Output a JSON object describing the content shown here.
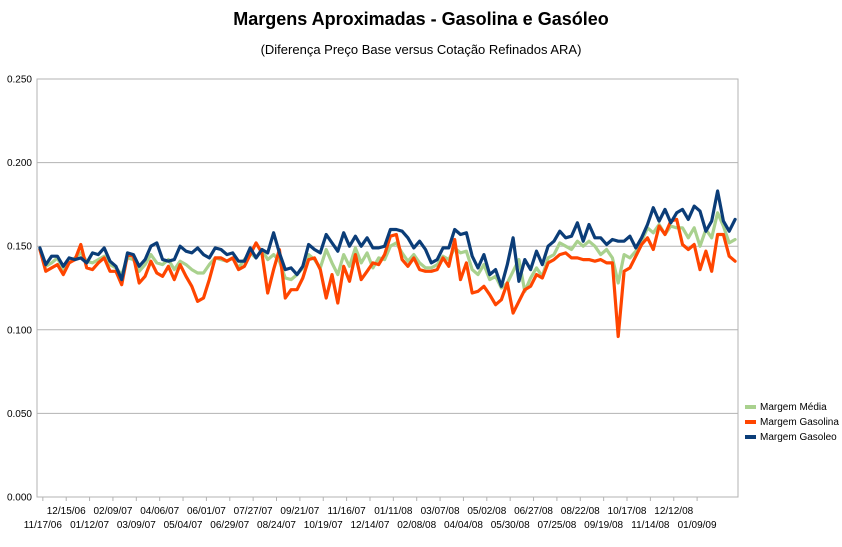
{
  "chart_data": {
    "type": "line",
    "title": "Margens Aproximadas - Gasolina e Gasóleo",
    "subtitle": "(Diferença Preço Base versus Cotação Refinados ARA)",
    "ylim": [
      0.0,
      0.25
    ],
    "yticks": [
      "0.000",
      "0.050",
      "0.100",
      "0.150",
      "0.200",
      "0.250"
    ],
    "grid": "horizontal",
    "legend_position": "right",
    "xtick_labels_upper": [
      "12/15/06",
      "02/09/07",
      "04/06/07",
      "06/01/07",
      "07/27/07",
      "09/21/07",
      "11/16/07",
      "01/11/08",
      "03/07/08",
      "05/02/08",
      "06/27/08",
      "08/22/08",
      "10/17/08",
      "12/12/08"
    ],
    "xtick_labels_lower": [
      "11/17/06",
      "01/12/07",
      "03/09/07",
      "05/04/07",
      "06/29/07",
      "08/24/07",
      "10/19/07",
      "12/14/07",
      "02/08/08",
      "04/04/08",
      "05/30/08",
      "07/25/08",
      "09/19/08",
      "11/14/08",
      "01/09/09"
    ],
    "series": [
      {
        "name": "Margem Média",
        "color": "#a9d18e",
        "values": [
          0.148,
          0.138,
          0.14,
          0.143,
          0.136,
          0.14,
          0.143,
          0.146,
          0.141,
          0.14,
          0.142,
          0.144,
          0.139,
          0.137,
          0.133,
          0.143,
          0.142,
          0.135,
          0.139,
          0.145,
          0.14,
          0.139,
          0.142,
          0.136,
          0.141,
          0.139,
          0.136,
          0.134,
          0.134,
          0.139,
          0.143,
          0.142,
          0.141,
          0.143,
          0.137,
          0.142,
          0.146,
          0.143,
          0.148,
          0.142,
          0.145,
          0.141,
          0.131,
          0.13,
          0.133,
          0.137,
          0.145,
          0.142,
          0.137,
          0.148,
          0.14,
          0.133,
          0.145,
          0.138,
          0.149,
          0.14,
          0.146,
          0.137,
          0.143,
          0.142,
          0.15,
          0.152,
          0.146,
          0.141,
          0.145,
          0.14,
          0.137,
          0.137,
          0.139,
          0.144,
          0.142,
          0.149,
          0.146,
          0.147,
          0.136,
          0.133,
          0.139,
          0.13,
          0.132,
          0.125,
          0.128,
          0.135,
          0.142,
          0.123,
          0.131,
          0.137,
          0.132,
          0.143,
          0.145,
          0.152,
          0.15,
          0.148,
          0.153,
          0.15,
          0.153,
          0.15,
          0.145,
          0.148,
          0.143,
          0.128,
          0.145,
          0.143,
          0.147,
          0.153,
          0.161,
          0.158,
          0.163,
          0.157,
          0.162,
          0.161,
          0.161,
          0.155,
          0.161,
          0.15,
          0.16,
          0.155,
          0.17,
          0.162,
          0.152,
          0.154
        ]
      },
      {
        "name": "Margem Gasolina",
        "color": "#ff4500",
        "values": [
          0.148,
          0.135,
          0.137,
          0.139,
          0.133,
          0.14,
          0.142,
          0.151,
          0.137,
          0.136,
          0.14,
          0.143,
          0.135,
          0.135,
          0.127,
          0.145,
          0.144,
          0.128,
          0.132,
          0.141,
          0.134,
          0.132,
          0.138,
          0.13,
          0.139,
          0.132,
          0.126,
          0.117,
          0.119,
          0.13,
          0.143,
          0.143,
          0.141,
          0.143,
          0.136,
          0.138,
          0.145,
          0.152,
          0.146,
          0.122,
          0.136,
          0.148,
          0.119,
          0.124,
          0.124,
          0.131,
          0.142,
          0.143,
          0.136,
          0.119,
          0.133,
          0.116,
          0.138,
          0.129,
          0.145,
          0.13,
          0.135,
          0.14,
          0.139,
          0.145,
          0.156,
          0.157,
          0.142,
          0.138,
          0.143,
          0.136,
          0.135,
          0.135,
          0.136,
          0.143,
          0.138,
          0.154,
          0.13,
          0.14,
          0.122,
          0.123,
          0.126,
          0.121,
          0.115,
          0.118,
          0.128,
          0.11,
          0.117,
          0.124,
          0.126,
          0.133,
          0.131,
          0.14,
          0.142,
          0.145,
          0.146,
          0.143,
          0.143,
          0.142,
          0.142,
          0.141,
          0.142,
          0.14,
          0.14,
          0.096,
          0.135,
          0.137,
          0.144,
          0.151,
          0.155,
          0.148,
          0.162,
          0.157,
          0.165,
          0.166,
          0.151,
          0.148,
          0.151,
          0.136,
          0.147,
          0.135,
          0.157,
          0.157,
          0.144,
          0.141
        ]
      },
      {
        "name": "Margem Gasoleo",
        "color": "#0b3d78",
        "values": [
          0.149,
          0.139,
          0.144,
          0.144,
          0.138,
          0.143,
          0.142,
          0.143,
          0.14,
          0.146,
          0.145,
          0.149,
          0.141,
          0.138,
          0.13,
          0.146,
          0.145,
          0.138,
          0.142,
          0.15,
          0.152,
          0.142,
          0.141,
          0.142,
          0.15,
          0.147,
          0.146,
          0.149,
          0.145,
          0.143,
          0.149,
          0.148,
          0.145,
          0.146,
          0.141,
          0.141,
          0.149,
          0.143,
          0.148,
          0.146,
          0.158,
          0.146,
          0.136,
          0.137,
          0.133,
          0.138,
          0.151,
          0.148,
          0.146,
          0.157,
          0.152,
          0.147,
          0.158,
          0.15,
          0.156,
          0.15,
          0.155,
          0.149,
          0.149,
          0.15,
          0.16,
          0.16,
          0.159,
          0.155,
          0.149,
          0.153,
          0.148,
          0.14,
          0.142,
          0.149,
          0.149,
          0.16,
          0.157,
          0.158,
          0.144,
          0.137,
          0.145,
          0.133,
          0.136,
          0.126,
          0.139,
          0.155,
          0.129,
          0.142,
          0.136,
          0.147,
          0.139,
          0.15,
          0.153,
          0.159,
          0.155,
          0.156,
          0.164,
          0.153,
          0.163,
          0.155,
          0.155,
          0.151,
          0.154,
          0.153,
          0.153,
          0.156,
          0.149,
          0.155,
          0.163,
          0.173,
          0.165,
          0.172,
          0.164,
          0.17,
          0.172,
          0.166,
          0.174,
          0.171,
          0.159,
          0.165,
          0.183,
          0.165,
          0.159,
          0.166
        ]
      }
    ]
  }
}
